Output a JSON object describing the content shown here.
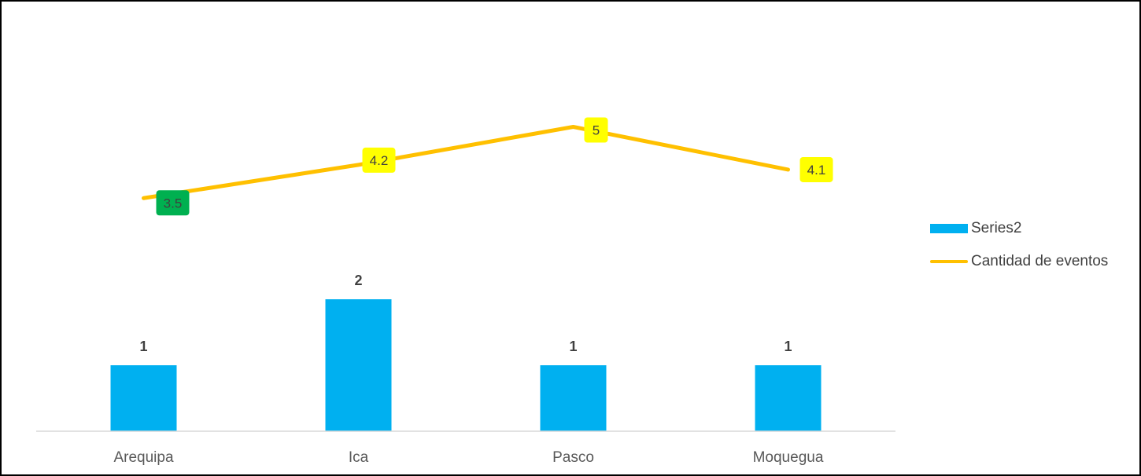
{
  "chart_data": {
    "type": "bar",
    "categories": [
      "Arequipa",
      "Ica",
      "Pasco",
      "Moquegua"
    ],
    "series": [
      {
        "name": "Series2",
        "type": "bar",
        "values": [
          1,
          2,
          1,
          1
        ],
        "color": "#00b0f0"
      },
      {
        "name": "Cantidad de eventos",
        "type": "line",
        "values": [
          3.5,
          4.2,
          5,
          4.1
        ],
        "color": "#ffc000"
      }
    ],
    "bar_labels": [
      "1",
      "2",
      "1",
      "1"
    ],
    "line_labels": [
      "3.5",
      "4.2",
      "5",
      "4.1"
    ],
    "line_label_colors": [
      "#00b050",
      "#ffff00",
      "#ffff00",
      "#ffff00"
    ],
    "bar_ylim": [
      0,
      4
    ],
    "line_ylim": [
      0,
      7.2
    ],
    "xlabel": "",
    "ylabel": "",
    "grid": false,
    "legend_position": "right"
  }
}
